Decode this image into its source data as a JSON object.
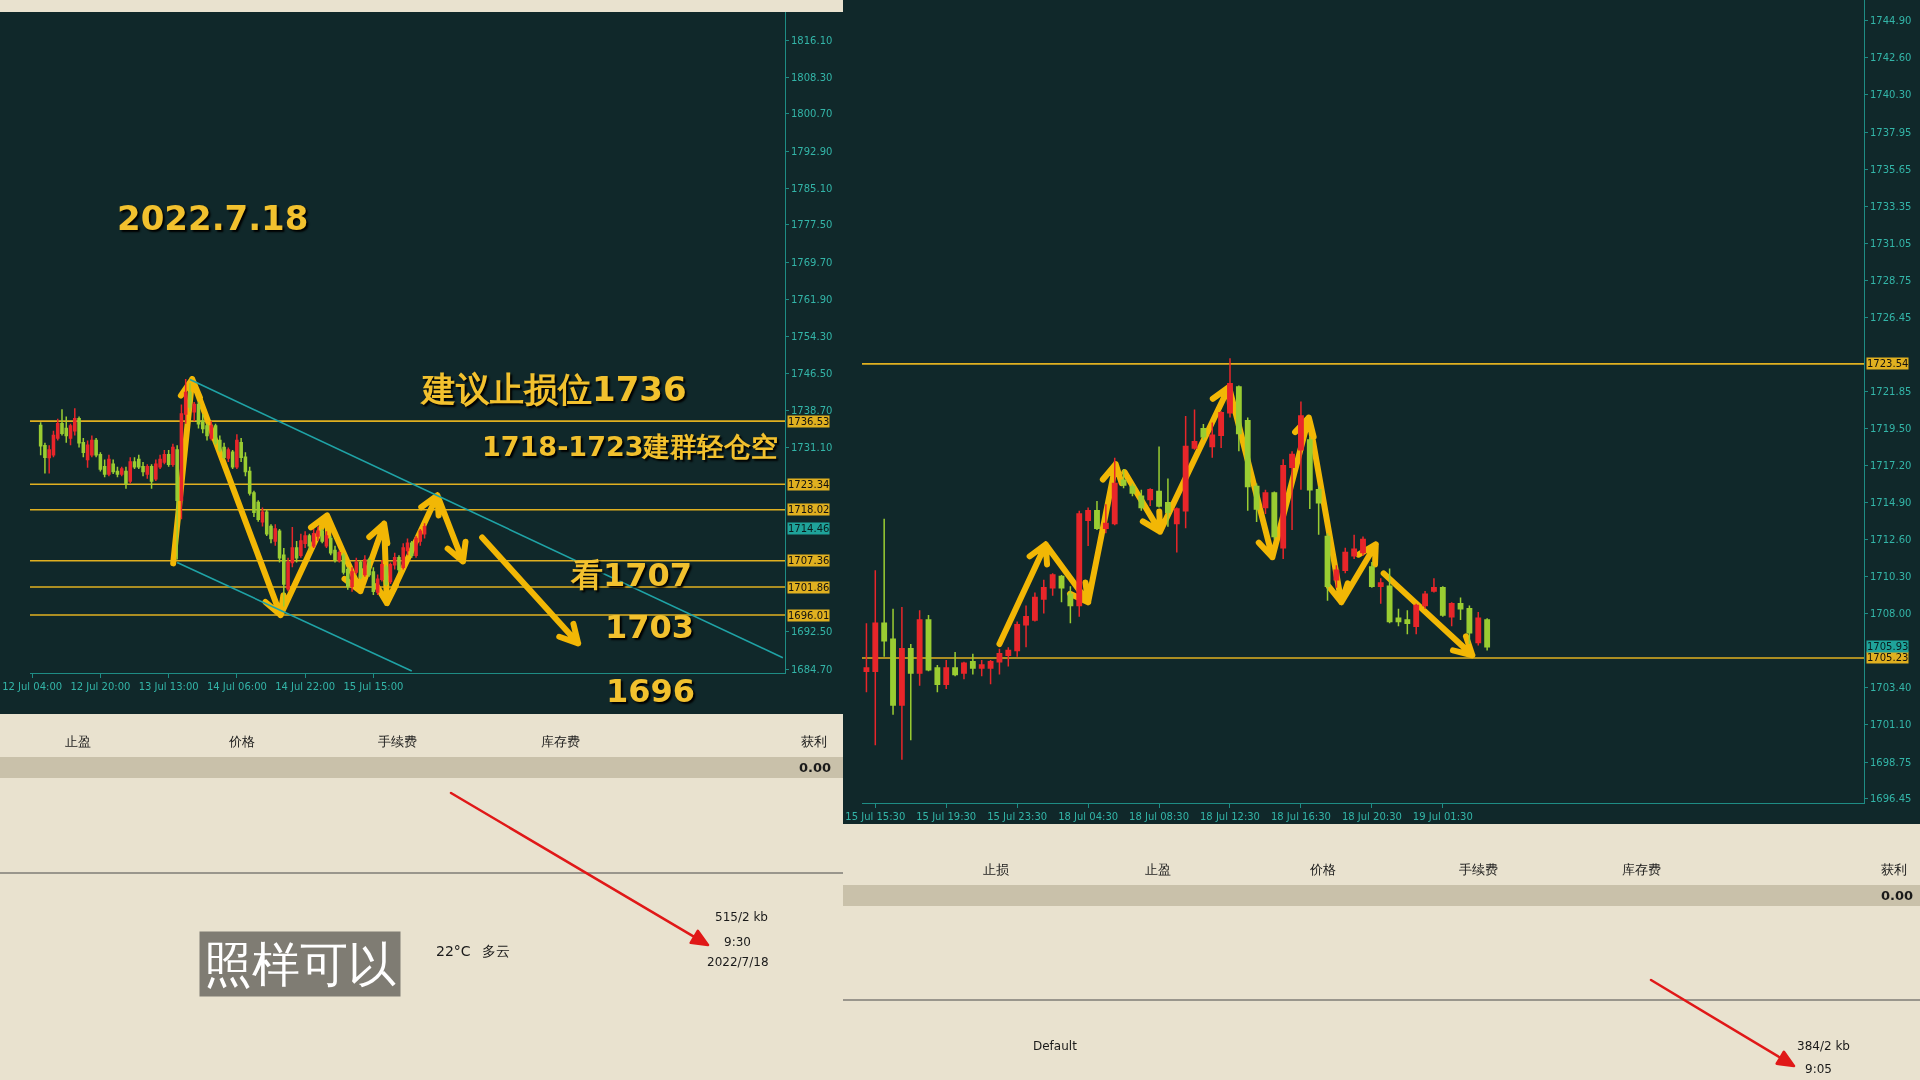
{
  "chart_data": [
    {
      "type": "candlestick",
      "categories": [
        "12 Jul 04:00",
        null,
        null,
        null,
        null,
        null,
        null,
        null,
        null,
        null,
        null,
        null,
        null,
        null,
        null,
        null,
        "12 Jul 20:00",
        null,
        null,
        null,
        null,
        null,
        null,
        null,
        null,
        null,
        null,
        null,
        null,
        null,
        null,
        null,
        "13 Jul 13:00",
        null,
        null,
        null,
        null,
        null,
        null,
        null,
        null,
        null,
        null,
        null,
        null,
        null,
        null,
        null,
        "14 Jul 06:00",
        null,
        null,
        null,
        null,
        null,
        null,
        null,
        null,
        null,
        null,
        null,
        null,
        null,
        null,
        null,
        "14 Jul 22:00",
        null,
        null,
        null,
        null,
        null,
        null,
        null,
        null,
        null,
        null,
        null,
        null,
        null,
        null,
        null,
        "15 Jul 15:00",
        null,
        null,
        null,
        null,
        null,
        null,
        null,
        null,
        null,
        null,
        null,
        null,
        null,
        null,
        null,
        null,
        null,
        null,
        null,
        null,
        null,
        null,
        null,
        null,
        null,
        null,
        null,
        null,
        null,
        null,
        null,
        null,
        null,
        null,
        null,
        null,
        null,
        null,
        null,
        null,
        null,
        null,
        null,
        null,
        null,
        null,
        null,
        null,
        null,
        null,
        null,
        null,
        null,
        null,
        null,
        null,
        null,
        null,
        null,
        null,
        null,
        null,
        null,
        null,
        null,
        null,
        null,
        null,
        null,
        null,
        null,
        null,
        null,
        null,
        null,
        null,
        null,
        null,
        null,
        null,
        null,
        null,
        null,
        null,
        null,
        null,
        null,
        null,
        null,
        null,
        null,
        null,
        null,
        null,
        null,
        null
      ],
      "ohlc": [
        null,
        null,
        [
          1735.6,
          1736.3,
          1729.4,
          1731.4
        ],
        [
          1731.4,
          1732.0,
          1725.6,
          1729.0
        ],
        [
          1728.9,
          1731.5,
          1725.6,
          1730.5
        ],
        [
          1729.5,
          1734.5,
          1729.0,
          1733.5
        ],
        [
          1733.0,
          1737.0,
          1732.5,
          1736.0
        ],
        [
          1736.0,
          1739.0,
          1733.5,
          1734.0
        ],
        [
          1735.0,
          1737.5,
          1732.0,
          1733.5
        ],
        [
          1733.0,
          1736.0,
          1731.5,
          1735.5
        ],
        [
          1734.5,
          1739.2,
          1733.5,
          1737.0
        ],
        [
          1737.0,
          1737.5,
          1731.0,
          1732.0
        ],
        [
          1732.0,
          1733.0,
          1729.0,
          1730.0
        ],
        [
          1728.5,
          1732.5,
          1726.8,
          1731.5
        ],
        [
          1729.5,
          1733.5,
          1729.0,
          1732.5
        ],
        [
          1732.5,
          1733.0,
          1729.0,
          1729.5
        ],
        [
          1729.5,
          1730.0,
          1726.0,
          1726.5
        ],
        [
          1727.0,
          1728.5,
          1724.8,
          1725.5
        ],
        [
          1725.5,
          1729.5,
          1725.0,
          1728.5
        ],
        [
          1727.5,
          1728.5,
          1725.5,
          1726.0
        ],
        [
          1726.0,
          1727.0,
          1724.8,
          1725.5
        ],
        [
          1725.5,
          1727.0,
          1725.0,
          1726.5
        ],
        [
          1726.0,
          1727.0,
          1722.4,
          1723.5
        ],
        [
          1724.0,
          1729.0,
          1723.5,
          1728.0
        ],
        [
          1728.0,
          1729.0,
          1726.5,
          1727.0
        ],
        [
          1728.5,
          1729.5,
          1726.5,
          1727.0
        ],
        [
          1727.0,
          1728.0,
          1725.0,
          1726.0
        ],
        [
          1725.5,
          1727.5,
          1724.5,
          1727.0
        ],
        [
          1727.0,
          1727.5,
          1722.4,
          1724.0
        ],
        [
          1724.5,
          1728.5,
          1724.0,
          1727.5
        ],
        [
          1727.0,
          1729.5,
          1726.5,
          1728.5
        ],
        [
          1728.0,
          1730.5,
          1727.5,
          1729.5
        ],
        [
          1729.5,
          1730.5,
          1727.0,
          1727.5
        ],
        [
          1727.5,
          1731.8,
          1727.0,
          1731.0
        ],
        [
          1730.5,
          1731.5,
          1707.6,
          1720.0
        ],
        [
          1720.0,
          1740.0,
          1716.0,
          1738.0
        ],
        [
          1738.0,
          1745.3,
          1736.0,
          1742.5
        ],
        [
          1742.5,
          1744.5,
          1738.5,
          1739.5
        ],
        [
          1738.5,
          1740.5,
          1736.5,
          1740.0
        ],
        [
          1740.0,
          1740.5,
          1735.0,
          1736.0
        ],
        [
          1736.5,
          1738.0,
          1734.0,
          1735.0
        ],
        [
          1735.5,
          1736.0,
          1732.5,
          1733.5
        ],
        [
          1733.0,
          1736.5,
          1732.5,
          1735.5
        ],
        [
          1735.5,
          1736.0,
          1731.5,
          1732.0
        ],
        [
          1732.5,
          1733.5,
          1730.0,
          1730.5
        ],
        [
          1731.0,
          1732.0,
          1728.5,
          1729.0
        ],
        [
          1728.8,
          1731.0,
          1728.0,
          1730.5
        ],
        [
          1730.0,
          1730.5,
          1726.5,
          1727.0
        ],
        [
          1727.0,
          1733.8,
          1726.5,
          1732.5
        ],
        [
          1732.0,
          1733.0,
          1728.0,
          1729.0
        ],
        [
          1729.0,
          1730.0,
          1725.0,
          1726.0
        ],
        [
          1726.0,
          1727.0,
          1721.0,
          1721.5
        ],
        [
          1721.5,
          1722.0,
          1716.5,
          1717.5
        ],
        [
          1719.5,
          1720.0,
          1715.5,
          1716.0
        ],
        [
          1715.5,
          1718.5,
          1714.5,
          1717.5
        ],
        [
          1717.5,
          1718.0,
          1712.5,
          1713.0
        ],
        [
          1714.5,
          1715.0,
          1711.0,
          1712.0
        ],
        [
          1711.5,
          1715.0,
          1710.5,
          1714.0
        ],
        [
          1713.5,
          1714.0,
          1707.0,
          1708.0
        ],
        [
          1708.5,
          1710.0,
          1697.8,
          1702.5
        ],
        [
          1701.5,
          1708.0,
          1701.0,
          1707.0
        ],
        [
          1707.0,
          1714.4,
          1706.0,
          1710.0
        ],
        [
          1710.0,
          1711.5,
          1707.0,
          1708.0
        ],
        [
          1708.5,
          1713.0,
          1708.0,
          1711.5
        ],
        [
          1711.0,
          1713.5,
          1710.0,
          1712.5
        ],
        [
          1712.5,
          1713.0,
          1709.5,
          1710.5
        ],
        [
          1710.5,
          1714.0,
          1710.0,
          1713.0
        ],
        [
          1712.5,
          1714.5,
          1711.5,
          1713.5
        ],
        [
          1713.5,
          1714.0,
          1711.0,
          1711.5
        ],
        [
          1710.5,
          1713.5,
          1710.0,
          1712.5
        ],
        [
          1712.0,
          1712.5,
          1708.5,
          1709.0
        ],
        [
          1709.5,
          1710.5,
          1707.0,
          1707.5
        ],
        [
          1707.5,
          1709.5,
          1707.0,
          1709.0
        ],
        [
          1708.5,
          1709.0,
          1704.5,
          1705.0
        ],
        [
          1705.5,
          1706.0,
          1701.3,
          1702.0
        ],
        [
          1702.0,
          1706.0,
          1700.9,
          1705.0
        ],
        [
          1705.0,
          1708.0,
          1704.5,
          1707.0
        ],
        [
          1707.0,
          1707.5,
          1703.5,
          1704.0
        ],
        [
          1704.5,
          1708.5,
          1704.0,
          1707.5
        ],
        [
          1707.5,
          1708.0,
          1704.0,
          1704.5
        ],
        [
          1705.0,
          1706.0,
          1700.2,
          1701.0
        ],
        [
          1700.8,
          1704.5,
          1700.2,
          1703.5
        ],
        [
          1703.5,
          1707.5,
          1703.0,
          1706.5
        ],
        [
          1706.0,
          1706.5,
          1702.0,
          1702.5
        ],
        [
          1703.0,
          1707.0,
          1702.5,
          1706.5
        ],
        [
          1706.5,
          1709.0,
          1705.5,
          1708.0
        ],
        [
          1708.0,
          1708.5,
          1705.0,
          1705.5
        ],
        [
          1706.0,
          1711.0,
          1705.5,
          1710.0
        ],
        [
          1709.5,
          1712.0,
          1708.5,
          1711.0
        ],
        [
          1711.0,
          1711.5,
          1708.0,
          1708.5
        ],
        [
          1708.5,
          1712.5,
          1708.0,
          1712.0
        ],
        [
          1711.5,
          1714.0,
          1710.5,
          1713.5
        ],
        [
          1713.0,
          1715.2,
          1712.0,
          1714.46
        ],
        null,
        null,
        null,
        null,
        null,
        null,
        null,
        null,
        null,
        null,
        null,
        null,
        null,
        null,
        null,
        null,
        null,
        null,
        null,
        null,
        null,
        null,
        null,
        null,
        null,
        null,
        null,
        null,
        null,
        null,
        null,
        null,
        null,
        null,
        null,
        null,
        null,
        null,
        null,
        null,
        null,
        null,
        null,
        null,
        null,
        null,
        null,
        null,
        null,
        null,
        null,
        null,
        null,
        null,
        null,
        null,
        null,
        null,
        null,
        null,
        null,
        null,
        null,
        null,
        null,
        null,
        null,
        null,
        null,
        null,
        null,
        null,
        null,
        null,
        null,
        null,
        null,
        null,
        null,
        null,
        null,
        null,
        null,
        null
      ],
      "colors": [
        null,
        null,
        "#9acd32",
        "#9acd32",
        "#e8262a",
        "#e8262a",
        "#e8262a",
        "#9acd32",
        "#9acd32",
        "#e8262a",
        "#e8262a",
        "#9acd32",
        "#9acd32",
        "#e8262a",
        "#e8262a",
        "#9acd32",
        "#9acd32",
        "#9acd32",
        "#e8262a",
        "#9acd32",
        "#9acd32",
        "#e8262a",
        "#9acd32",
        "#e8262a",
        "#9acd32",
        "#9acd32",
        "#9acd32",
        "#e8262a",
        "#9acd32",
        "#e8262a",
        "#e8262a",
        "#e8262a",
        "#9acd32",
        "#e8262a",
        "#9acd32",
        "#e8262a",
        "#e8262a",
        "#9acd32",
        "#e8262a",
        "#9acd32",
        "#9acd32",
        "#9acd32",
        "#e8262a",
        "#9acd32",
        "#9acd32",
        "#9acd32",
        "#e8262a",
        "#9acd32",
        "#e8262a",
        "#9acd32",
        "#9acd32",
        "#9acd32",
        "#9acd32",
        "#9acd32",
        "#e8262a",
        "#9acd32",
        "#9acd32",
        "#e8262a",
        "#9acd32",
        "#9acd32",
        "#e8262a",
        "#e8262a",
        "#9acd32",
        "#e8262a",
        "#e8262a",
        "#9acd32",
        "#e8262a",
        "#e8262a",
        "#9acd32",
        "#e8262a",
        "#9acd32",
        "#9acd32",
        "#e8262a",
        "#9acd32",
        "#9acd32",
        "#e8262a",
        "#e8262a",
        "#9acd32",
        "#e8262a",
        "#9acd32",
        "#9acd32",
        "#e8262a",
        "#e8262a",
        "#9acd32",
        "#e8262a",
        "#e8262a",
        "#9acd32",
        "#e8262a",
        "#e8262a",
        "#9acd32",
        "#e8262a",
        "#e8262a",
        "#e8262a",
        null,
        null,
        null,
        null,
        null,
        null,
        null,
        null,
        null,
        null,
        null,
        null,
        null,
        null,
        null,
        null,
        null,
        null,
        null,
        null,
        null,
        null,
        null,
        null,
        null,
        null,
        null,
        null,
        null,
        null,
        null,
        null,
        null,
        null,
        null,
        null,
        null,
        null,
        null,
        null,
        null,
        null,
        null,
        null,
        null,
        null,
        null,
        null,
        null,
        null,
        null,
        null,
        null,
        null,
        null,
        null,
        null,
        null,
        null,
        null,
        null,
        null,
        null,
        null,
        null,
        null,
        null,
        null,
        null,
        null,
        null,
        null,
        null,
        null,
        null,
        null,
        null,
        null,
        null,
        null,
        null,
        null,
        null,
        null
      ],
      "series": [
        {
          "type": "line",
          "color": "#1fa3a6",
          "values": [
            null,
            null,
            null,
            null,
            null,
            null,
            null,
            null,
            null,
            null,
            null,
            null,
            null,
            null,
            null,
            null,
            null,
            null,
            null,
            null,
            null,
            null,
            null,
            null,
            null,
            null,
            null,
            null,
            null,
            null,
            null,
            null,
            null,
            null,
            null,
            null,
            null,
            1745.2,
            null,
            null,
            null,
            null,
            null,
            null,
            null,
            null,
            null,
            null,
            null,
            null,
            null,
            null,
            null,
            null,
            null,
            null,
            null,
            null,
            null,
            null,
            null,
            null,
            null,
            null,
            null,
            null,
            null,
            null,
            null,
            null,
            null,
            null,
            null,
            null,
            null,
            null,
            null,
            null,
            null,
            null,
            null,
            null,
            null,
            null,
            null,
            null,
            null,
            null,
            null,
            null,
            null,
            null,
            null,
            null,
            null,
            null,
            null,
            null,
            null,
            null,
            null,
            null,
            null,
            null,
            null,
            null,
            null,
            null,
            null,
            null,
            null,
            null,
            null,
            null,
            null,
            null,
            null,
            null,
            null,
            null,
            null,
            null,
            null,
            null,
            null,
            null,
            null,
            null,
            null,
            null,
            null,
            null,
            null,
            null,
            null,
            null,
            null,
            null,
            null,
            null,
            null,
            null,
            null,
            null,
            null,
            null,
            null,
            null,
            null,
            null,
            null,
            null,
            null,
            null,
            null,
            null,
            null,
            null,
            null,
            null,
            null,
            null,
            null,
            null,
            null,
            null,
            null,
            null,
            null,
            null,
            null,
            null,
            null,
            null,
            null,
            null,
            1687.1
          ]
        },
        {
          "type": "line",
          "color": "#1fa3a6",
          "values": [
            null,
            null,
            null,
            null,
            null,
            null,
            null,
            null,
            null,
            null,
            null,
            null,
            null,
            null,
            null,
            null,
            null,
            null,
            null,
            null,
            null,
            null,
            null,
            null,
            null,
            null,
            null,
            null,
            null,
            null,
            null,
            null,
            null,
            null,
            1707.0,
            null,
            null,
            null,
            null,
            null,
            null,
            null,
            null,
            null,
            null,
            null,
            null,
            null,
            null,
            null,
            null,
            null,
            null,
            null,
            null,
            null,
            null,
            null,
            null,
            null,
            null,
            null,
            null,
            null,
            null,
            null,
            null,
            null,
            null,
            null,
            null,
            null,
            null,
            null,
            null,
            null,
            null,
            null,
            null,
            null,
            null,
            null,
            null,
            null,
            null,
            null,
            null,
            null,
            null,
            1684.3,
            null,
            null,
            null,
            null,
            null,
            null,
            null,
            null,
            null,
            null,
            null,
            null,
            null,
            null,
            null,
            null,
            null,
            null,
            null,
            null,
            null,
            null,
            null,
            null,
            null,
            null,
            null,
            null,
            null,
            null,
            null,
            null,
            null,
            null,
            null,
            null,
            null,
            null,
            null,
            null,
            null,
            null,
            null,
            null,
            null,
            null,
            null,
            null,
            null,
            null,
            null,
            null,
            null,
            null,
            null,
            null,
            null,
            null,
            null,
            null,
            null,
            null,
            null,
            null,
            null,
            null,
            null,
            null,
            null,
            null,
            null,
            null,
            null,
            null,
            null,
            null,
            null,
            null,
            null,
            null,
            null,
            null,
            null,
            null,
            null,
            null,
            null
          ]
        }
      ],
      "ylim": [
        1683.9,
        1822.0
      ],
      "yticks": [
        {
          "value": 1816.1,
          "label": "1816.10"
        },
        {
          "value": 1808.3,
          "label": "1808.30"
        },
        {
          "value": 1800.7,
          "label": "1800.70"
        },
        {
          "value": 1792.9,
          "label": "1792.90"
        },
        {
          "value": 1785.1,
          "label": "1785.10"
        },
        {
          "value": 1777.5,
          "label": "1777.50"
        },
        {
          "value": 1769.7,
          "label": "1769.70"
        },
        {
          "value": 1761.9,
          "label": "1761.90"
        },
        {
          "value": 1754.3,
          "label": "1754.30"
        },
        {
          "value": 1746.5,
          "label": "1746.50"
        },
        {
          "value": 1738.7,
          "label": "1738.70"
        },
        {
          "value": 1731.1,
          "label": "1731.10"
        },
        {
          "value": 1692.5,
          "label": "1692.50"
        },
        {
          "value": 1684.7,
          "label": "1684.70"
        }
      ],
      "ref_lines": [
        {
          "axis": "y",
          "value": 1736.53,
          "label": "1736.53",
          "color": "#e0b020"
        },
        {
          "axis": "y",
          "value": 1723.34,
          "label": "1723.34",
          "color": "#e0b020"
        },
        {
          "axis": "y",
          "value": 1718.02,
          "label": "1718.02",
          "color": "#e0b020"
        },
        {
          "axis": "y",
          "value": 1707.36,
          "label": "1707.36",
          "color": "#e0b020"
        },
        {
          "axis": "y",
          "value": 1701.86,
          "label": "1701.86",
          "color": "#e0b020"
        },
        {
          "axis": "y",
          "value": 1696.01,
          "label": "1696.01",
          "color": "#e0b020"
        }
      ],
      "annotations": [
        "2022.7.18",
        "建议止损位1736",
        "1718-1723建群轻仓空",
        "看1707",
        "1703",
        "1696",
        "1714.46"
      ]
    },
    {
      "type": "candlestick",
      "categories": [
        null,
        "15 Jul 15:30",
        null,
        null,
        null,
        null,
        null,
        null,
        null,
        "15 Jul 19:30",
        null,
        null,
        null,
        null,
        null,
        null,
        null,
        "15 Jul 23:30",
        null,
        null,
        null,
        null,
        null,
        null,
        null,
        "18 Jul 04:30",
        null,
        null,
        null,
        null,
        null,
        null,
        null,
        "18 Jul 08:30",
        null,
        null,
        null,
        null,
        null,
        null,
        null,
        "18 Jul 12:30",
        null,
        null,
        null,
        null,
        null,
        null,
        null,
        "18 Jul 16:30",
        null,
        null,
        null,
        null,
        null,
        null,
        null,
        "18 Jul 20:30",
        null,
        null,
        null,
        null,
        null,
        null,
        null,
        "19 Jul 01:30",
        null,
        null,
        null,
        null,
        null,
        null,
        null,
        null,
        null,
        null,
        null,
        null,
        null,
        null,
        null,
        null,
        null,
        null,
        null,
        null,
        null,
        null,
        null,
        null,
        null,
        null,
        null,
        null,
        null,
        null,
        null,
        null,
        null,
        null,
        null,
        null,
        null,
        null,
        null,
        null,
        null,
        null,
        null,
        null,
        null,
        null,
        null
      ],
      "ohlc": [
        [
          1704.4,
          1707.4,
          1703.1,
          1704.6
        ],
        [
          1704.4,
          1710.7,
          1699.8,
          1707.4
        ],
        [
          1707.4,
          1713.9,
          1705.3,
          1706.3
        ],
        [
          1706.4,
          1708.3,
          1701.7,
          1702.3
        ],
        [
          1702.3,
          1708.4,
          1698.9,
          1705.8
        ],
        [
          1705.8,
          1706.1,
          1700.1,
          1704.3
        ],
        [
          1704.3,
          1708.2,
          1703.5,
          1707.6
        ],
        [
          1707.6,
          1707.9,
          1704.4,
          1704.5
        ],
        [
          1704.6,
          1704.8,
          1703.1,
          1703.6
        ],
        [
          1703.6,
          1705.1,
          1703.3,
          1704.6
        ],
        [
          1704.6,
          1705.6,
          1704.1,
          1704.2
        ],
        [
          1704.3,
          1705.0,
          1703.9,
          1704.9
        ],
        [
          1705.0,
          1705.5,
          1704.2,
          1704.6
        ],
        [
          1704.6,
          1705.1,
          1704.1,
          1704.8
        ],
        [
          1704.6,
          1705.1,
          1703.6,
          1705.0
        ],
        [
          1705.0,
          1705.8,
          1704.2,
          1705.5
        ],
        [
          1705.4,
          1705.9,
          1704.7,
          1705.7
        ],
        [
          1705.7,
          1707.5,
          1705.3,
          1707.3
        ],
        [
          1707.3,
          1708.5,
          1705.9,
          1707.8
        ],
        [
          1707.6,
          1709.3,
          1707.5,
          1709.0
        ],
        [
          1708.9,
          1710.1,
          1708.0,
          1709.6
        ],
        [
          1709.6,
          1710.5,
          1709.1,
          1710.4
        ],
        [
          1710.3,
          1710.4,
          1708.7,
          1709.6
        ],
        [
          1709.2,
          1709.7,
          1707.4,
          1708.5
        ],
        [
          1708.5,
          1714.4,
          1707.8,
          1714.2
        ],
        [
          1713.8,
          1714.6,
          1712.2,
          1714.4
        ],
        [
          1714.4,
          1715.0,
          1713.2,
          1713.3
        ],
        [
          1713.3,
          1714.8,
          1713.0,
          1713.6
        ],
        [
          1713.6,
          1717.7,
          1713.5,
          1716.1
        ],
        [
          1716.3,
          1717.0,
          1715.8,
          1716.0
        ],
        [
          1715.9,
          1716.1,
          1715.3,
          1715.5
        ],
        [
          1715.3,
          1715.7,
          1714.4,
          1714.6
        ],
        [
          1715.1,
          1715.8,
          1714.7,
          1715.7
        ],
        [
          1715.6,
          1718.4,
          1714.6,
          1714.7
        ],
        [
          1714.9,
          1716.4,
          1713.4,
          1714.3
        ],
        [
          1713.6,
          1714.6,
          1711.8,
          1714.5
        ],
        [
          1714.4,
          1720.3,
          1713.3,
          1718.4
        ],
        [
          1718.3,
          1720.7,
          1718.2,
          1718.7
        ],
        [
          1719.5,
          1719.8,
          1718.8,
          1719.0
        ],
        [
          1718.4,
          1719.9,
          1717.7,
          1719.1
        ],
        [
          1719.1,
          1720.6,
          1718.3,
          1720.5
        ],
        [
          1720.5,
          1723.9,
          1720.2,
          1722.3
        ],
        [
          1722.1,
          1722.2,
          1718.1,
          1719.2
        ],
        [
          1720.0,
          1720.2,
          1714.4,
          1715.9
        ],
        [
          1715.9,
          1716.1,
          1713.7,
          1714.5
        ],
        [
          1714.6,
          1715.7,
          1714.2,
          1715.5
        ],
        [
          1715.5,
          1715.6,
          1712.6,
          1712.8
        ],
        [
          1712.1,
          1717.6,
          1711.4,
          1717.2
        ],
        [
          1717.1,
          1718.1,
          1713.2,
          1717.9
        ],
        [
          1718.2,
          1721.2,
          1715.7,
          1720.3
        ],
        [
          1718.8,
          1719.0,
          1714.5,
          1715.7
        ],
        [
          1715.7,
          1715.9,
          1712.9,
          1714.9
        ],
        [
          1712.8,
          1713.0,
          1708.8,
          1709.7
        ],
        [
          1710.1,
          1711.0,
          1709.6,
          1710.7
        ],
        [
          1710.7,
          1712.1,
          1710.5,
          1711.8
        ],
        [
          1711.6,
          1712.9,
          1711.4,
          1712.0
        ],
        [
          1711.8,
          1712.8,
          1711.6,
          1712.6
        ],
        [
          1710.9,
          1711.2,
          1709.6,
          1709.7
        ],
        [
          1709.7,
          1710.2,
          1708.6,
          1709.9
        ],
        [
          1709.7,
          1710.8,
          1707.4,
          1707.5
        ],
        [
          1707.7,
          1708.3,
          1707.2,
          1707.5
        ],
        [
          1707.6,
          1708.2,
          1706.7,
          1707.4
        ],
        [
          1707.2,
          1708.6,
          1706.7,
          1708.5
        ],
        [
          1708.5,
          1709.4,
          1708.3,
          1709.2
        ],
        [
          1709.4,
          1710.2,
          1709.3,
          1709.6
        ],
        [
          1709.6,
          1709.7,
          1707.8,
          1707.9
        ],
        [
          1707.8,
          1708.7,
          1707.2,
          1708.6
        ],
        [
          1708.6,
          1709.0,
          1707.6,
          1708.3
        ],
        [
          1708.3,
          1708.5,
          1706.1,
          1706.8
        ],
        [
          1706.2,
          1708.1,
          1706.0,
          1707.7
        ],
        [
          1707.6,
          1707.7,
          1705.7,
          1705.93
        ],
        null,
        null,
        null,
        null,
        null,
        null,
        null,
        null,
        null,
        null,
        null,
        null,
        null,
        null,
        null,
        null,
        null,
        null,
        null,
        null,
        null,
        null,
        null,
        null,
        null,
        null,
        null,
        null,
        null,
        null,
        null,
        null,
        null,
        null,
        null,
        null,
        null,
        null,
        null,
        null,
        null,
        null
      ],
      "colors": [
        "#e8262a",
        "#e8262a",
        "#9acd32",
        "#9acd32",
        "#e8262a",
        "#9acd32",
        "#e8262a",
        "#9acd32",
        "#9acd32",
        "#e8262a",
        "#9acd32",
        "#e8262a",
        "#9acd32",
        "#e8262a",
        "#e8262a",
        "#e8262a",
        "#e8262a",
        "#e8262a",
        "#e8262a",
        "#e8262a",
        "#e8262a",
        "#e8262a",
        "#9acd32",
        "#9acd32",
        "#e8262a",
        "#e8262a",
        "#9acd32",
        "#e8262a",
        "#e8262a",
        "#9acd32",
        "#9acd32",
        "#9acd32",
        "#e8262a",
        "#9acd32",
        "#9acd32",
        "#e8262a",
        "#e8262a",
        "#e8262a",
        "#9acd32",
        "#e8262a",
        "#e8262a",
        "#e8262a",
        "#9acd32",
        "#9acd32",
        "#9acd32",
        "#e8262a",
        "#9acd32",
        "#e8262a",
        "#e8262a",
        "#e8262a",
        "#9acd32",
        "#9acd32",
        "#9acd32",
        "#e8262a",
        "#e8262a",
        "#e8262a",
        "#e8262a",
        "#9acd32",
        "#e8262a",
        "#9acd32",
        "#9acd32",
        "#9acd32",
        "#e8262a",
        "#e8262a",
        "#e8262a",
        "#9acd32",
        "#e8262a",
        "#9acd32",
        "#9acd32",
        "#e8262a",
        "#9acd32",
        null,
        null,
        null,
        null,
        null,
        null,
        null,
        null,
        null,
        null,
        null,
        null,
        null,
        null,
        null,
        null,
        null,
        null,
        null,
        null,
        null,
        null,
        null,
        null,
        null,
        null,
        null,
        null,
        null,
        null,
        null,
        null,
        null,
        null,
        null,
        null,
        null,
        null,
        null,
        null,
        null,
        null
      ],
      "ylim": [
        1696.2,
        1746.2
      ],
      "yticks": [
        {
          "value": 1744.9,
          "label": "1744.90"
        },
        {
          "value": 1742.6,
          "label": "1742.60"
        },
        {
          "value": 1740.3,
          "label": "1740.30"
        },
        1737.95,
        1735.65,
        1733.35,
        1731.05,
        1728.75,
        1726.45,
        1721.85,
        {
          "value": 1719.5,
          "label": "1719.50"
        },
        {
          "value": 1717.2,
          "label": "1717.20"
        },
        {
          "value": 1714.9,
          "label": "1714.90"
        },
        {
          "value": 1712.6,
          "label": "1712.60"
        },
        {
          "value": 1710.3,
          "label": "1710.30"
        },
        {
          "value": 1708.0,
          "label": "1708.00"
        },
        {
          "value": 1703.4,
          "label": "1703.40"
        },
        {
          "value": 1701.1,
          "label": "1701.10"
        },
        1698.75,
        1696.45
      ],
      "ref_lines": [
        {
          "axis": "y",
          "value": 1723.54,
          "label": "1723.54",
          "color": "#e0b020"
        },
        {
          "axis": "y",
          "value": 1705.23,
          "label": "1705.23",
          "color": "#e0b020"
        }
      ],
      "annotations": [
        "1705.93"
      ]
    },
    {
      "type": "other",
      "annotations": [
        "止盈",
        "价格",
        "手续费",
        "库存费",
        "获利",
        "0.00",
        "515/2 kb",
        "22°C",
        "多云",
        "9:30",
        "2022/7/18",
        "照样可以"
      ]
    },
    {
      "type": "other",
      "annotations": [
        "止损",
        "止盈",
        "价格",
        "手续费",
        "库存费",
        "获利",
        "0.00",
        "Default",
        "384/2 kb",
        "9:05"
      ]
    }
  ]
}
